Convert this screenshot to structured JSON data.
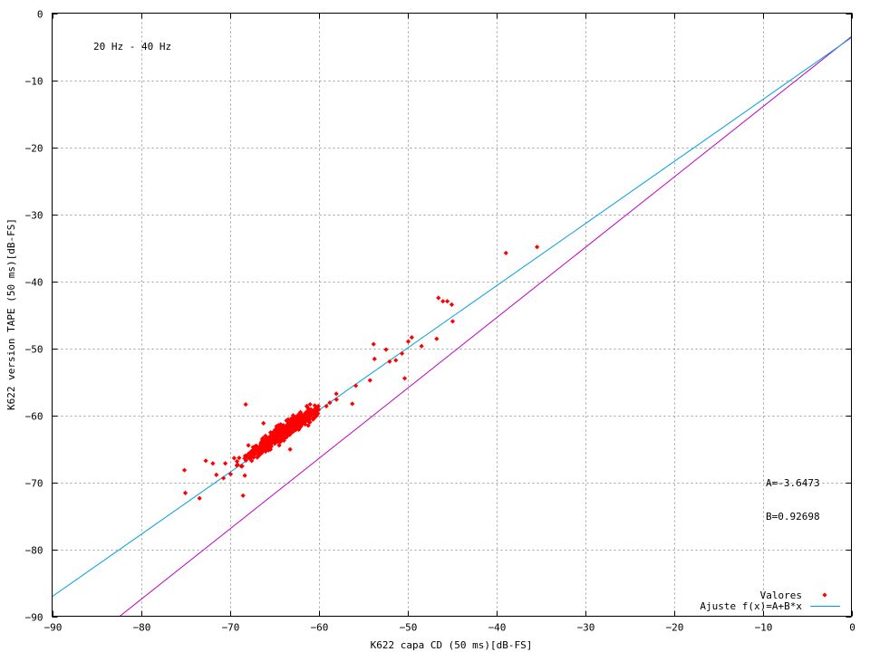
{
  "chart_data": {
    "type": "scatter",
    "title": "",
    "xlabel": "K622 capa CD (50 ms)[dB-FS]",
    "ylabel": "K622 version TAPE (50 ms)[dB-FS]",
    "xlim": [
      -90,
      0
    ],
    "ylim": [
      -90,
      0
    ],
    "x_ticks": [
      -90,
      -80,
      -70,
      -60,
      -50,
      -40,
      -30,
      -20,
      -10,
      0
    ],
    "y_ticks": [
      -90,
      -80,
      -70,
      -60,
      -50,
      -40,
      -30,
      -20,
      -10,
      0
    ],
    "grid": true,
    "legend_position": "bottom-right",
    "annotations": {
      "frequency_band": "20 Hz - 40 Hz",
      "coef_a": "A=-3.6473",
      "coef_b": "B=0.92698"
    },
    "series": [
      {
        "name": "Valores",
        "kind": "points",
        "color": "#ff0000",
        "cluster": {
          "x_center": -64,
          "y_center": -62.5,
          "slope": 0.92698,
          "count": 700
        },
        "points": [
          [
            -75.1,
            -68.2
          ],
          [
            -75.0,
            -71.6
          ],
          [
            -73.4,
            -72.4
          ],
          [
            -72.7,
            -66.8
          ],
          [
            -71.9,
            -67.2
          ],
          [
            -71.5,
            -68.9
          ],
          [
            -70.7,
            -69.4
          ],
          [
            -70.5,
            -67.2
          ],
          [
            -69.9,
            -68.8
          ],
          [
            -69.5,
            -66.4
          ],
          [
            -68.6,
            -67.6
          ],
          [
            -68.5,
            -72.0
          ],
          [
            -68.3,
            -69.0
          ],
          [
            -67.9,
            -64.5
          ],
          [
            -68.2,
            -58.4
          ],
          [
            -66.2,
            -61.2
          ],
          [
            -63.2,
            -65.1
          ],
          [
            -62.0,
            -61.7
          ],
          [
            -58.0,
            -56.8
          ],
          [
            -56.2,
            -58.3
          ],
          [
            -55.8,
            -55.6
          ],
          [
            -54.2,
            -54.8
          ],
          [
            -53.7,
            -51.6
          ],
          [
            -52.0,
            -52.0
          ],
          [
            -51.3,
            -51.8
          ],
          [
            -50.6,
            -50.8
          ],
          [
            -52.4,
            -50.2
          ],
          [
            -53.8,
            -49.4
          ],
          [
            -50.3,
            -54.5
          ],
          [
            -49.9,
            -49.0
          ],
          [
            -49.5,
            -48.4
          ],
          [
            -48.4,
            -49.7
          ],
          [
            -46.5,
            -42.5
          ],
          [
            -46.0,
            -43.0
          ],
          [
            -45.5,
            -43.0
          ],
          [
            -45.0,
            -43.5
          ],
          [
            -44.9,
            -46.0
          ],
          [
            -46.7,
            -48.6
          ],
          [
            -38.9,
            -35.8
          ],
          [
            -35.4,
            -34.9
          ]
        ]
      },
      {
        "name": "Ajuste f(x)=A+B*x",
        "kind": "line",
        "color": "#00a0e0",
        "a": -3.6473,
        "b": 0.92698
      },
      {
        "name": "",
        "kind": "line",
        "color": "#c000c0",
        "from": [
          -90,
          -98
        ],
        "to": [
          0,
          -3.5
        ]
      }
    ]
  }
}
